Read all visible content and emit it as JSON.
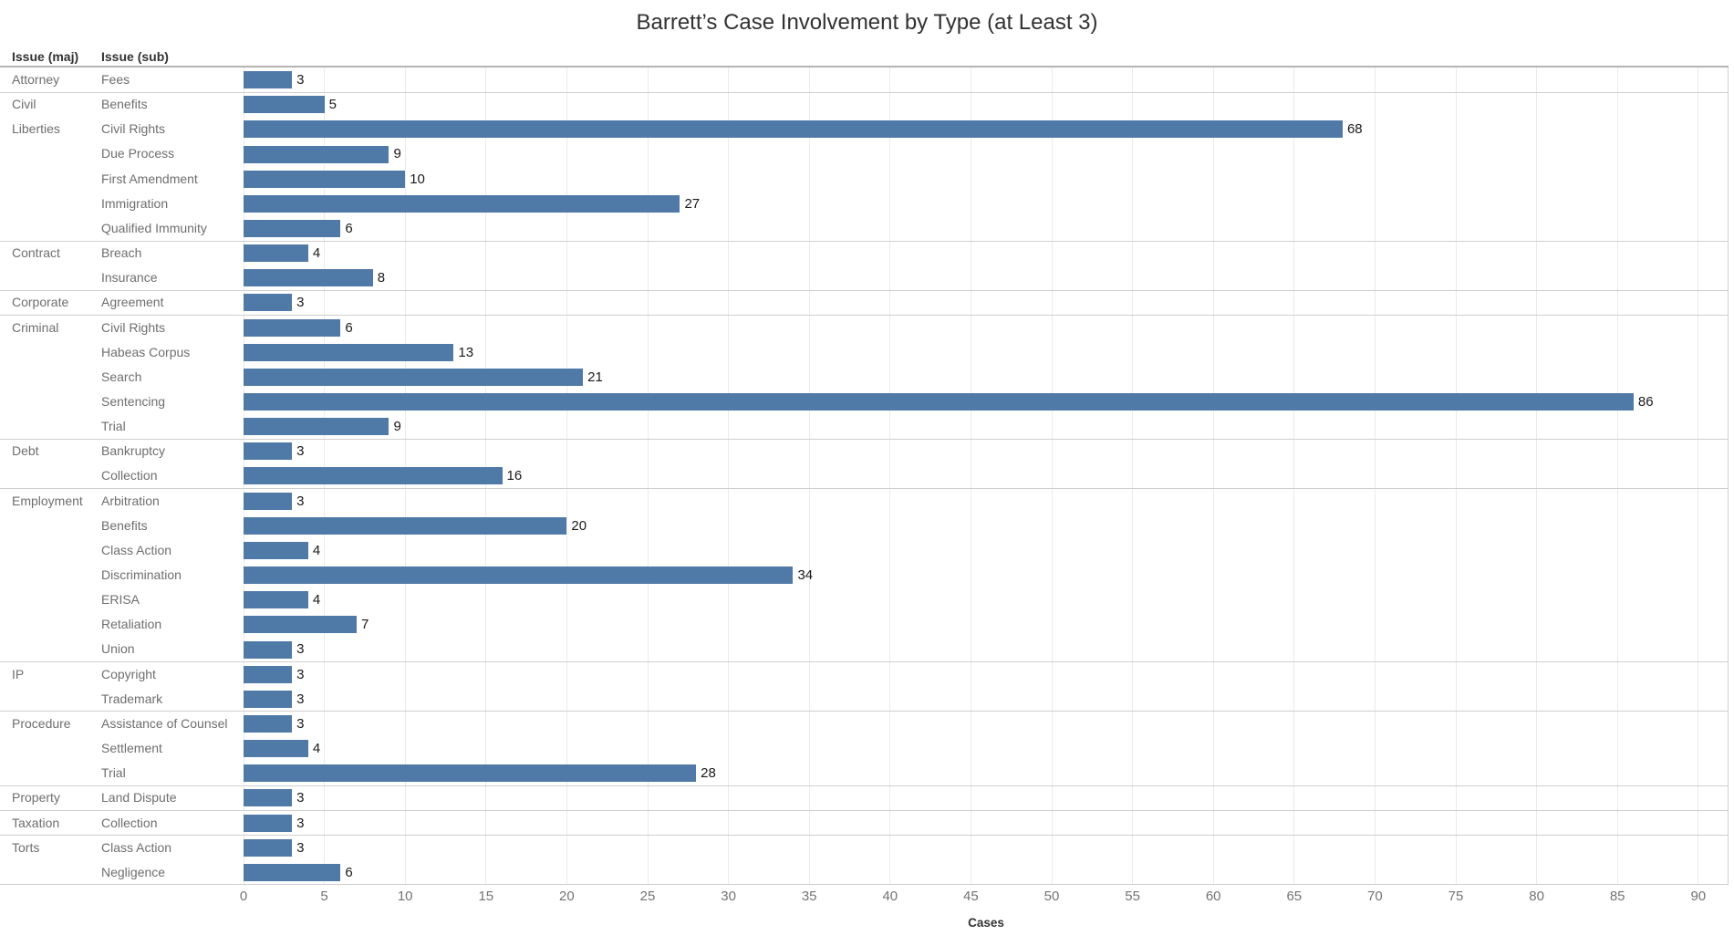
{
  "colors": {
    "bar": "#4f79a7",
    "grid_line": "#ebebeb",
    "separator_line": "#cfcfcf",
    "header_rule": "#b4b4b4",
    "row_label": "#6e6e6e",
    "value_label": "#1a1a1a",
    "tick_label": "#737373",
    "title_text": "#323232",
    "header_text": "#333333"
  },
  "chart_data": {
    "type": "bar",
    "orientation": "horizontal",
    "title": "Barrett’s Case Involvement by Type (at Least 3)",
    "xlabel": "Cases",
    "xlim": [
      0,
      92
    ],
    "xticks": [
      0,
      5,
      10,
      15,
      20,
      25,
      30,
      35,
      40,
      45,
      50,
      55,
      60,
      65,
      70,
      75,
      80,
      85,
      90
    ],
    "grid": "vertical-light",
    "bar_value_labels": true,
    "col_headers": {
      "maj": "Issue (maj)",
      "sub": "Issue (sub)"
    },
    "groups": [
      {
        "maj": "Attorney",
        "rows": [
          {
            "sub": "Fees",
            "value": 3
          }
        ]
      },
      {
        "maj": "Civil Liberties",
        "rows": [
          {
            "sub": "Benefits",
            "value": 5
          },
          {
            "sub": "Civil Rights",
            "value": 68
          },
          {
            "sub": "Due Process",
            "value": 9
          },
          {
            "sub": "First Amendment",
            "value": 10
          },
          {
            "sub": "Immigration",
            "value": 27
          },
          {
            "sub": "Qualified Immunity",
            "value": 6
          }
        ]
      },
      {
        "maj": "Contract",
        "rows": [
          {
            "sub": "Breach",
            "value": 4
          },
          {
            "sub": "Insurance",
            "value": 8
          }
        ]
      },
      {
        "maj": "Corporate",
        "rows": [
          {
            "sub": "Agreement",
            "value": 3
          }
        ]
      },
      {
        "maj": "Criminal",
        "rows": [
          {
            "sub": "Civil Rights",
            "value": 6
          },
          {
            "sub": "Habeas Corpus",
            "value": 13
          },
          {
            "sub": "Search",
            "value": 21
          },
          {
            "sub": "Sentencing",
            "value": 86
          },
          {
            "sub": "Trial",
            "value": 9
          }
        ]
      },
      {
        "maj": "Debt",
        "rows": [
          {
            "sub": "Bankruptcy",
            "value": 3
          },
          {
            "sub": "Collection",
            "value": 16
          }
        ]
      },
      {
        "maj": "Employment",
        "rows": [
          {
            "sub": "Arbitration",
            "value": 3
          },
          {
            "sub": "Benefits",
            "value": 20
          },
          {
            "sub": "Class Action",
            "value": 4
          },
          {
            "sub": "Discrimination",
            "value": 34
          },
          {
            "sub": "ERISA",
            "value": 4
          },
          {
            "sub": "Retaliation",
            "value": 7
          },
          {
            "sub": "Union",
            "value": 3
          }
        ]
      },
      {
        "maj": "IP",
        "rows": [
          {
            "sub": "Copyright",
            "value": 3
          },
          {
            "sub": "Trademark",
            "value": 3
          }
        ]
      },
      {
        "maj": "Procedure",
        "rows": [
          {
            "sub": "Assistance of Counsel",
            "value": 3
          },
          {
            "sub": "Settlement",
            "value": 4
          },
          {
            "sub": "Trial",
            "value": 28
          }
        ]
      },
      {
        "maj": "Property",
        "rows": [
          {
            "sub": "Land Dispute",
            "value": 3
          }
        ]
      },
      {
        "maj": "Taxation",
        "rows": [
          {
            "sub": "Collection",
            "value": 3
          }
        ]
      },
      {
        "maj": "Torts",
        "rows": [
          {
            "sub": "Class Action",
            "value": 3
          },
          {
            "sub": "Negligence",
            "value": 6
          }
        ]
      }
    ]
  }
}
